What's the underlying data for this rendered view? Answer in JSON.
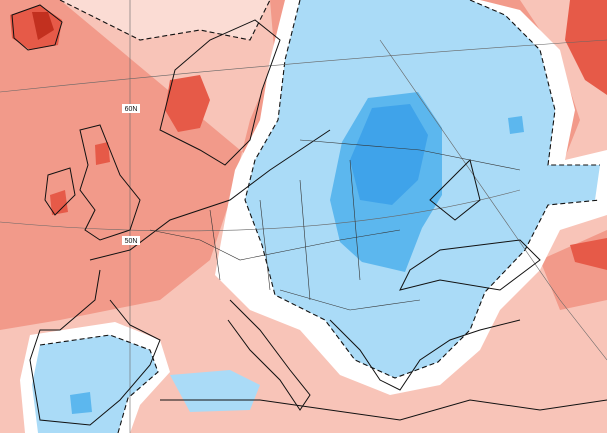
{
  "map": {
    "latitude_labels": [
      "60N",
      "50N"
    ]
  }
}
